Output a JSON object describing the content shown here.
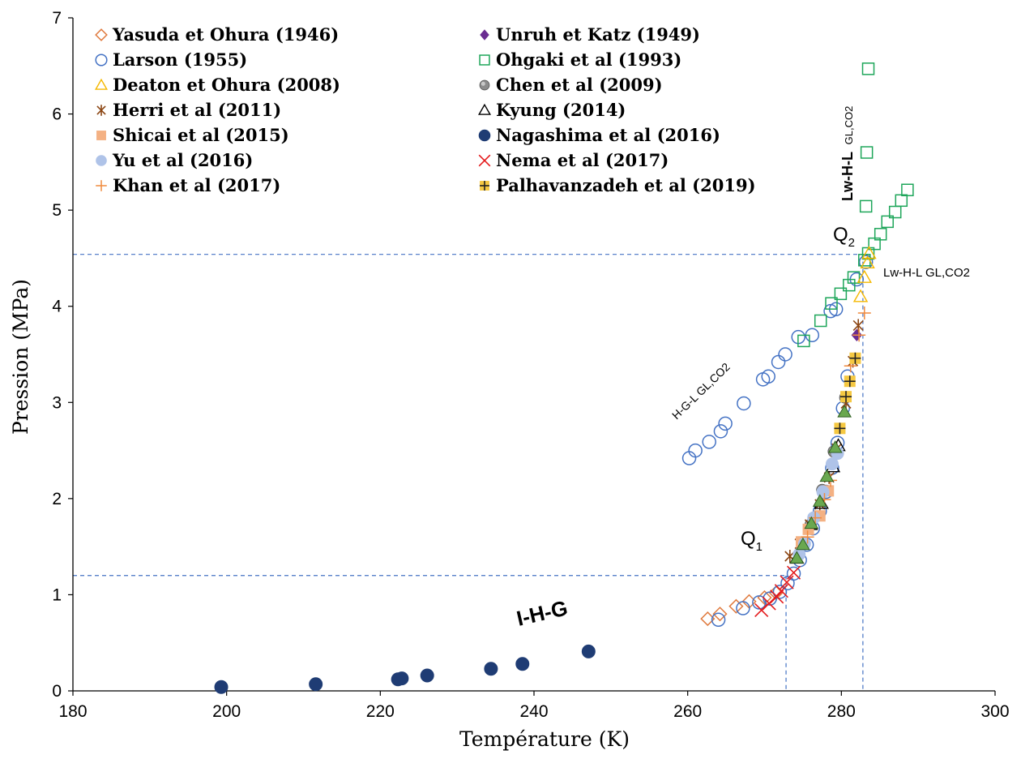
{
  "chart_data": {
    "type": "scatter",
    "title": "",
    "xlabel": "Température    (K)",
    "ylabel": "Pression    (MPa)",
    "xlim": [
      180,
      300
    ],
    "ylim": [
      0,
      7
    ],
    "x_ticks": [
      "180",
      "200",
      "220",
      "240",
      "260",
      "280",
      "300"
    ],
    "y_ticks": [
      "0",
      "1",
      "2",
      "3",
      "4",
      "5",
      "6",
      "7"
    ],
    "grid": false,
    "legend_position": "top-left",
    "series": [
      {
        "name": "Yasuda et Ohura (1946)",
        "marker": "diamond-open",
        "color": "#E07A3E",
        "x": [
          262.6,
          264.2,
          266.3,
          268.0,
          270.0,
          271.5
        ],
        "y": [
          0.75,
          0.8,
          0.88,
          0.93,
          0.97,
          1.02
        ]
      },
      {
        "name": "Unruh et Katz (1949)",
        "marker": "diamond-filled",
        "color": "#6A2C91",
        "x": [
          282.0
        ],
        "y": [
          3.7
        ]
      },
      {
        "name": "Larson (1955)",
        "marker": "circle-open",
        "color": "#4472C4",
        "x": [
          260.2,
          261.0,
          262.8,
          264.3,
          264.9,
          267.3,
          269.8,
          270.5,
          271.8,
          272.7,
          274.4,
          276.2,
          278.6,
          279.3,
          282.0,
          283.2,
          264.0,
          267.2,
          269.3,
          270.7,
          272.0,
          273.0,
          273.8,
          274.6,
          275.5,
          276.3,
          277.2,
          278.0,
          278.8,
          279.5,
          280.2,
          280.8
        ],
        "y": [
          2.42,
          2.5,
          2.59,
          2.7,
          2.78,
          2.99,
          3.24,
          3.27,
          3.42,
          3.5,
          3.68,
          3.7,
          3.95,
          3.97,
          4.28,
          4.46,
          0.74,
          0.86,
          0.92,
          0.96,
          1.03,
          1.12,
          1.22,
          1.36,
          1.52,
          1.69,
          1.87,
          2.07,
          2.32,
          2.58,
          2.94,
          3.27
        ]
      },
      {
        "name": "Ohgaki et al (1993)",
        "marker": "square-open",
        "color": "#1EA65A",
        "x": [
          275.1,
          277.3,
          278.7,
          279.9,
          281.0,
          281.6,
          283.0,
          283.5,
          284.3,
          285.1,
          286.0,
          287.0,
          287.8,
          288.6,
          283.2,
          283.3,
          283.5
        ],
        "y": [
          3.64,
          3.85,
          4.03,
          4.13,
          4.22,
          4.3,
          4.48,
          4.55,
          4.65,
          4.75,
          4.88,
          4.98,
          5.1,
          5.21,
          5.04,
          5.6,
          6.47
        ]
      },
      {
        "name": "Deaton et Ohura (2008)",
        "marker": "triangle-open",
        "color": "#F5B800",
        "x": [
          282.5,
          283.0,
          283.4,
          283.6
        ],
        "y": [
          4.1,
          4.3,
          4.45,
          4.55
        ]
      },
      {
        "name": "Chen et al (2009)",
        "marker": "circle-gray",
        "color": "#8C8C8C",
        "x": [
          276.0,
          277.5,
          279.0,
          280.5
        ],
        "y": [
          1.73,
          2.09,
          2.49,
          3.05
        ]
      },
      {
        "name": "Herri et al (2011)",
        "marker": "asterisk",
        "color": "#8B4513",
        "x": [
          273.3,
          274.6,
          275.9,
          277.2,
          278.4,
          279.4,
          280.6,
          281.5,
          282.2
        ],
        "y": [
          1.4,
          1.53,
          1.73,
          1.94,
          2.22,
          2.52,
          2.99,
          3.43,
          3.8
        ]
      },
      {
        "name": "Kyung (2014)",
        "marker": "triangle-open-black",
        "color": "#000000",
        "x": [
          274.2,
          276.0,
          277.4,
          278.9,
          279.6
        ],
        "y": [
          1.38,
          1.73,
          1.95,
          2.33,
          2.55
        ]
      },
      {
        "name": "Shicai et al (2015)",
        "marker": "square-filled",
        "color": "#F4B183",
        "x": [
          274.8,
          275.7,
          277.2,
          278.3
        ],
        "y": [
          1.55,
          1.68,
          1.82,
          2.08
        ]
      },
      {
        "name": "Nagashima et al (2016)",
        "marker": "circle-filled",
        "color": "#1F3C74",
        "x": [
          199.3,
          211.6,
          222.3,
          222.8,
          226.1,
          234.4,
          238.5,
          247.1
        ],
        "y": [
          0.04,
          0.07,
          0.12,
          0.13,
          0.16,
          0.23,
          0.28,
          0.41
        ]
      },
      {
        "name": "Yu et al (2016)",
        "marker": "circle-light",
        "color": "#AFC3E8",
        "x": [
          274.5,
          275.2,
          276.4,
          277.6,
          278.8,
          279.5
        ],
        "y": [
          1.42,
          1.53,
          1.8,
          2.07,
          2.36,
          2.47
        ]
      },
      {
        "name": "Nema et al (2017)",
        "marker": "x",
        "color": "#E41A1C",
        "x": [
          269.6,
          270.6,
          271.6,
          272.2,
          272.9,
          273.8
        ],
        "y": [
          0.84,
          0.91,
          0.98,
          1.04,
          1.13,
          1.23
        ]
      },
      {
        "name": "Khan et al (2017)",
        "marker": "plus",
        "color": "#F08A3E",
        "x": [
          275.6,
          276.6,
          277.8,
          278.6,
          281.2,
          282.3,
          283.0
        ],
        "y": [
          1.6,
          1.8,
          1.99,
          2.19,
          3.38,
          3.7,
          3.93
        ]
      },
      {
        "name": "Palhavanzadeh et al (2019)",
        "marker": "square-plus",
        "color": "#F5C842",
        "x": [
          279.8,
          280.6,
          281.1,
          281.8
        ],
        "y": [
          2.73,
          3.06,
          3.22,
          3.46
        ]
      },
      {
        "name": "",
        "marker": "triangle-green",
        "color": "#6AA84F",
        "x": [
          274.2,
          275.0,
          276.1,
          277.2,
          278.1,
          279.2,
          280.4
        ],
        "y": [
          1.38,
          1.52,
          1.74,
          1.97,
          2.23,
          2.53,
          2.9
        ]
      }
    ],
    "reference_lines": [
      {
        "name": "Q1",
        "x": 272.8,
        "y": 1.2
      },
      {
        "name": "Q2",
        "x": 282.8,
        "y": 4.54
      }
    ],
    "annotations": {
      "ihg": "I-H-G",
      "hgl": "H-G-L GL,CO2",
      "lwhl_right": "Lw-H-L GL,CO2",
      "lwhl_vertical_main": "Lw-H-L",
      "lwhl_vertical_sub": "GL,CO2",
      "q1_main": "Q",
      "q1_sub": "1",
      "q2_main": "Q",
      "q2_sub": "2"
    }
  }
}
